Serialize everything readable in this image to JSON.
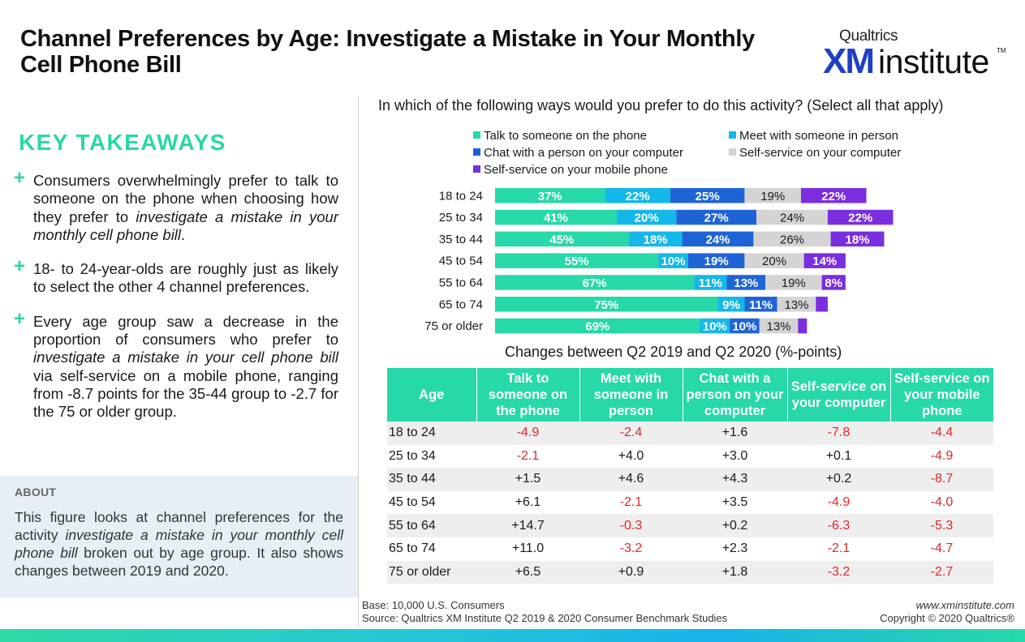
{
  "page": {
    "title": "Channel Preferences by Age: Investigate a Mistake in Your Monthly Cell Phone Bill",
    "logo": {
      "top": "Qualtrics",
      "xm": "XM",
      "institute": "institute",
      "tm": "TM"
    }
  },
  "takeaways": {
    "heading": "KEY TAKEAWAYS",
    "plus": "+",
    "b1": {
      "pre": "Consumers overwhelmingly prefer to talk to someone on the phone when choosing how they prefer to ",
      "em": "investigate a mistake in your monthly cell phone bill",
      "post": "."
    },
    "b2": "18- to 24-year-olds are roughly just as likely to select the other 4 channel preferences.",
    "b3": {
      "pre": "Every age group saw a decrease in the proportion of consumers who prefer to ",
      "em": "investigate a mistake in your cell phone bill",
      "post": " via self-service on a mobile phone, ranging from -8.7 points for the 35-44 group to -2.7 for the 75 or older group."
    }
  },
  "about": {
    "heading": "ABOUT",
    "pre": "This figure looks at channel preferences for the activity ",
    "em": "investigate a mistake in your monthly cell phone bill",
    "post": " broken out by age group. It also shows changes between 2019 and 2020."
  },
  "chart_data": {
    "type": "bar",
    "orientation": "horizontal-stacked",
    "title": "In which of the following ways would you prefer to do this activity? (Select all that apply)",
    "categories": [
      "18 to 24",
      "25 to 34",
      "35 to 44",
      "45 to 54",
      "55 to 64",
      "65 to 74",
      "75 or older"
    ],
    "series": [
      {
        "name": "Talk to someone on the phone",
        "color": "#27d8a8",
        "values": [
          37,
          41,
          45,
          55,
          67,
          75,
          69
        ],
        "labels": [
          "37%",
          "41%",
          "45%",
          "55%",
          "67%",
          "75%",
          "69%"
        ]
      },
      {
        "name": "Meet with someone in person",
        "color": "#13b8e8",
        "values": [
          22,
          20,
          18,
          10,
          11,
          9,
          10
        ],
        "labels": [
          "22%",
          "20%",
          "18%",
          "10%",
          "11%",
          "9%",
          "10%"
        ]
      },
      {
        "name": "Chat with a person on your computer",
        "color": "#1f64d6",
        "values": [
          25,
          27,
          24,
          19,
          13,
          11,
          10
        ],
        "labels": [
          "25%",
          "27%",
          "24%",
          "19%",
          "13%",
          "11%",
          "10%"
        ]
      },
      {
        "name": "Self-service on your computer",
        "color": "#d4d4d4",
        "values": [
          19,
          24,
          26,
          20,
          19,
          13,
          13
        ],
        "labels": [
          "19%",
          "24%",
          "26%",
          "20%",
          "19%",
          "13%",
          "13%"
        ]
      },
      {
        "name": "Self-service on your mobile phone",
        "color": "#7a2ee0",
        "values": [
          22,
          22,
          18,
          14,
          8,
          4,
          3
        ],
        "labels": [
          "22%",
          "22%",
          "18%",
          "14%",
          "8%",
          "",
          ""
        ]
      }
    ],
    "legend_position": "top"
  },
  "changes": {
    "title": "Changes between Q2 2019 and Q2 2020 (%-points)",
    "headers": [
      "Age",
      "Talk to someone on the phone",
      "Meet with someone in person",
      "Chat with a person on your computer",
      "Self-service on your computer",
      "Self-service on your mobile phone"
    ],
    "rows": [
      [
        "18 to 24",
        "-4.9",
        "-2.4",
        "+1.6",
        "-7.8",
        "-4.4"
      ],
      [
        "25 to 34",
        "-2.1",
        "+4.0",
        "+3.0",
        "+0.1",
        "-4.9"
      ],
      [
        "35 to 44",
        "+1.5",
        "+4.6",
        "+4.3",
        "+0.2",
        "-8.7"
      ],
      [
        "45 to 54",
        "+6.1",
        "-2.1",
        "+3.5",
        "-4.9",
        "-4.0"
      ],
      [
        "55 to 64",
        "+14.7",
        "-0.3",
        "+0.2",
        "-6.3",
        "-5.3"
      ],
      [
        "65 to 74",
        "+11.0",
        "-3.2",
        "+2.3",
        "-2.1",
        "-4.7"
      ],
      [
        "75 or older",
        "+6.5",
        "+0.9",
        "+1.8",
        "-3.2",
        "-2.7"
      ]
    ],
    "negative_color": "#e0262b"
  },
  "footer": {
    "base": "Base: 10,000 U.S. Consumers",
    "source": "Source: Qualtrics XM Institute Q2 2019 & 2020 Consumer Benchmark Studies",
    "site": "www.xminstitute.com",
    "copyright": "Copyright © 2020 Qualtrics®"
  }
}
